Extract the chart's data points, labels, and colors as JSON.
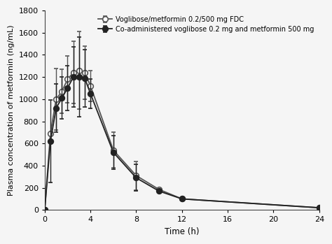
{
  "series1_label": "Co-administered voglibose 0.2 mg and metformin 500 mg",
  "series2_label": "Voglibose/metformin 0.2/500 mg FDC",
  "time": [
    0,
    0.5,
    1,
    1.5,
    2,
    2.5,
    3,
    3.5,
    4,
    6,
    8,
    10,
    12,
    24
  ],
  "s1_mean": [
    0,
    620,
    920,
    1010,
    1100,
    1200,
    1200,
    1190,
    1050,
    520,
    290,
    170,
    100,
    20
  ],
  "s1_err": [
    0,
    370,
    220,
    190,
    200,
    270,
    360,
    260,
    130,
    150,
    120,
    0,
    0,
    0
  ],
  "s2_mean": [
    0,
    690,
    1000,
    1070,
    1180,
    1240,
    1260,
    1240,
    1120,
    540,
    310,
    185,
    100,
    20
  ],
  "s2_err": [
    0,
    0,
    280,
    200,
    210,
    280,
    350,
    240,
    140,
    160,
    130,
    0,
    0,
    0
  ],
  "xlim": [
    0,
    24
  ],
  "ylim": [
    0,
    1800
  ],
  "xticks": [
    0,
    4,
    8,
    12,
    16,
    20,
    24
  ],
  "yticks": [
    0,
    200,
    400,
    600,
    800,
    1000,
    1200,
    1400,
    1600,
    1800
  ],
  "xlabel": "Time (h)",
  "ylabel": "Plasma concentration of metformin (ng/mL)",
  "s1_color": "#222222",
  "s2_color": "#555555",
  "bg_color": "#f5f5f5",
  "linewidth": 1.3,
  "marker_size": 5.5,
  "capsize": 2.5,
  "elinewidth": 1.0,
  "legend_fontsize": 7.0,
  "axis_label_fontsize": 8.5,
  "tick_fontsize": 8.0
}
